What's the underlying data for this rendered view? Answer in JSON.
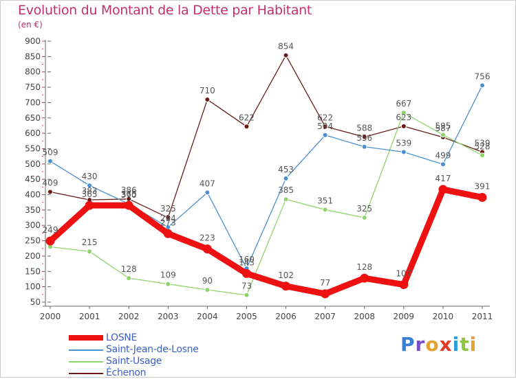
{
  "title": "Evolution du Montant de la Dette par Habitant",
  "subtitle": "(en €)",
  "brand": {
    "letters": [
      "P",
      "r",
      "o",
      "x",
      "i",
      "t",
      "i"
    ],
    "colors": [
      "#3a7fd6",
      "#7a4ec8",
      "#e8a030",
      "#e23a2a",
      "#2e9be0",
      "#8cc63e",
      "#e8a030"
    ]
  },
  "chart_data": {
    "type": "line",
    "x": [
      "2000",
      "2001",
      "2002",
      "2003",
      "2004",
      "2005",
      "2006",
      "2007",
      "2008",
      "2009",
      "2010",
      "2011"
    ],
    "ylim": [
      50,
      900
    ],
    "yticks": [
      50,
      100,
      150,
      200,
      250,
      300,
      350,
      400,
      450,
      500,
      550,
      600,
      650,
      700,
      750,
      800,
      850,
      900
    ],
    "grid": false,
    "legend_position": "bottom-left",
    "series": [
      {
        "name": "Échenon",
        "color": "#6b1a1a",
        "values": [
          409,
          383,
          386,
          325,
          710,
          622,
          854,
          622,
          588,
          623,
          587,
          539
        ]
      },
      {
        "name": "Saint-Usage",
        "color": "#8ed46a",
        "values": [
          230,
          215,
          128,
          109,
          90,
          73,
          385,
          351,
          325,
          667,
          595,
          528
        ]
      },
      {
        "name": "Saint-Jean-de-Losne",
        "color": "#4a8fd0",
        "values": [
          509,
          430,
          370,
          294,
          407,
          160,
          453,
          594,
          556,
          539,
          499,
          756
        ]
      },
      {
        "name": "LOSNE",
        "color": "#ee1111",
        "values": [
          249,
          365,
          365,
          273,
          223,
          143,
          102,
          77,
          128,
          107,
          417,
          391
        ]
      }
    ],
    "point_labels": [
      {
        "series": "Échenon",
        "labels": [
          "409",
          "383",
          "386",
          "325",
          "710",
          "622",
          "854",
          "622",
          "588",
          "623",
          "587",
          "539"
        ]
      },
      {
        "series": "Saint-Usage",
        "labels": [
          "",
          "215",
          "128",
          "109",
          "90",
          "73",
          "385",
          "351",
          "325",
          "667",
          "595",
          "528"
        ]
      },
      {
        "series": "Saint-Jean-de-Losne",
        "labels": [
          "509",
          "430",
          "370",
          "294",
          "407",
          "160",
          "453",
          "594",
          "556",
          "539",
          "499",
          "756"
        ]
      },
      {
        "series": "LOSNE",
        "labels": [
          "249",
          "365",
          "365",
          "273",
          "223",
          "143",
          "102",
          "77",
          "128",
          "107",
          "417",
          "391"
        ]
      }
    ]
  },
  "legend": [
    {
      "label": "LOSNE",
      "color": "#ee1111",
      "thick": true
    },
    {
      "label": "Saint-Jean-de-Losne",
      "color": "#4a8fd0",
      "thick": false
    },
    {
      "label": "Saint-Usage",
      "color": "#8ed46a",
      "thick": false
    },
    {
      "label": "Échenon",
      "color": "#6b1a1a",
      "thick": false
    }
  ]
}
